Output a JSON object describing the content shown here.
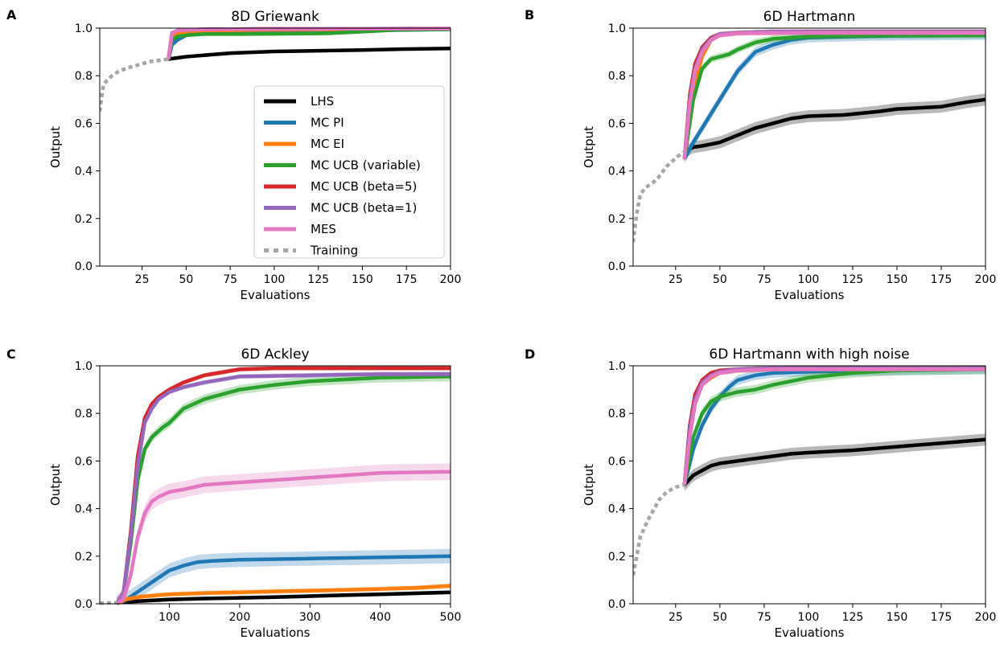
{
  "figure": {
    "panels": [
      "A",
      "B",
      "C",
      "D"
    ]
  },
  "chart_data": [
    {
      "panel": "A",
      "type": "line",
      "title": "8D Griewank",
      "xlabel": "Evaluations",
      "ylabel": "Output",
      "xlim": [
        1,
        200
      ],
      "ylim": [
        0,
        1
      ],
      "xticks": [
        25,
        50,
        75,
        100,
        125,
        150,
        175,
        200
      ],
      "yticks": [
        0.0,
        0.2,
        0.4,
        0.6,
        0.8,
        1.0
      ],
      "ytick_labels": [
        "0.0",
        "0.2",
        "0.4",
        "0.6",
        "0.8",
        "1.0"
      ],
      "legend": {
        "location": "center-right",
        "entries": [
          "LHS",
          "MC PI",
          "MC EI",
          "MC UCB (variable)",
          "MC UCB (beta=5)",
          "MC UCB (beta=1)",
          "MES",
          "Training"
        ]
      },
      "series": [
        {
          "name": "LHS",
          "x": [
            40,
            50,
            75,
            100,
            125,
            150,
            175,
            200
          ],
          "y": [
            0.87,
            0.88,
            0.895,
            0.902,
            0.905,
            0.908,
            0.912,
            0.915
          ],
          "band": 0
        },
        {
          "name": "MC PI",
          "x": [
            40,
            42,
            45,
            50,
            55,
            60,
            80,
            100,
            150,
            200
          ],
          "y": [
            0.87,
            0.93,
            0.95,
            0.97,
            0.975,
            0.978,
            0.98,
            0.985,
            0.99,
            0.995
          ],
          "band": 0.005
        },
        {
          "name": "MC EI",
          "x": [
            40,
            42,
            45,
            50,
            60,
            100,
            150,
            200
          ],
          "y": [
            0.87,
            0.97,
            0.98,
            0.985,
            0.99,
            0.993,
            0.995,
            0.997
          ],
          "band": 0
        },
        {
          "name": "MC UCB (variable)",
          "x": [
            40,
            42,
            45,
            50,
            60,
            80,
            100,
            130,
            150,
            170,
            200
          ],
          "y": [
            0.87,
            0.95,
            0.965,
            0.97,
            0.975,
            0.975,
            0.976,
            0.978,
            0.985,
            0.993,
            0.995
          ],
          "band": 0.004
        },
        {
          "name": "MC UCB (beta=5)",
          "x": [
            40,
            42,
            45,
            50,
            60,
            100,
            200
          ],
          "y": [
            0.87,
            0.98,
            0.99,
            0.993,
            0.995,
            0.997,
            0.998
          ],
          "band": 0
        },
        {
          "name": "MC UCB (beta=1)",
          "x": [
            40,
            42,
            45,
            50,
            60,
            100,
            200
          ],
          "y": [
            0.87,
            0.98,
            0.99,
            0.993,
            0.995,
            0.997,
            0.998
          ],
          "band": 0
        },
        {
          "name": "MES",
          "x": [
            40,
            42,
            45,
            50,
            60,
            100,
            200
          ],
          "y": [
            0.87,
            0.98,
            0.99,
            0.993,
            0.995,
            0.997,
            0.998
          ],
          "band": 0
        },
        {
          "name": "Training",
          "x": [
            1,
            3,
            5,
            8,
            12,
            16,
            20,
            25,
            30,
            35,
            40
          ],
          "y": [
            0.65,
            0.76,
            0.78,
            0.8,
            0.82,
            0.83,
            0.84,
            0.85,
            0.86,
            0.865,
            0.87
          ],
          "band": 0
        }
      ]
    },
    {
      "panel": "B",
      "type": "line",
      "title": "6D Hartmann",
      "xlabel": "Evaluations",
      "ylabel": "Output",
      "xlim": [
        1,
        200
      ],
      "ylim": [
        0,
        1
      ],
      "xticks": [
        25,
        50,
        75,
        100,
        125,
        150,
        175,
        200
      ],
      "yticks": [
        0.0,
        0.2,
        0.4,
        0.6,
        0.8,
        1.0
      ],
      "ytick_labels": [
        "0.0",
        "0.2",
        "0.4",
        "0.6",
        "0.8",
        "1.0"
      ],
      "series": [
        {
          "name": "LHS",
          "x": [
            30,
            35,
            40,
            50,
            60,
            70,
            80,
            90,
            100,
            120,
            140,
            150,
            175,
            190,
            200
          ],
          "y": [
            0.48,
            0.5,
            0.505,
            0.52,
            0.55,
            0.58,
            0.6,
            0.62,
            0.63,
            0.635,
            0.65,
            0.66,
            0.67,
            0.69,
            0.7
          ],
          "band": 0.025
        },
        {
          "name": "MC PI",
          "x": [
            30,
            35,
            40,
            50,
            60,
            70,
            80,
            90,
            100,
            125,
            150,
            200
          ],
          "y": [
            0.45,
            0.52,
            0.58,
            0.7,
            0.82,
            0.9,
            0.93,
            0.95,
            0.96,
            0.965,
            0.968,
            0.97
          ],
          "band": 0.02
        },
        {
          "name": "MC EI",
          "x": [
            30,
            35,
            40,
            45,
            50,
            60,
            80,
            100,
            200
          ],
          "y": [
            0.45,
            0.75,
            0.88,
            0.95,
            0.97,
            0.98,
            0.98,
            0.985,
            0.985
          ],
          "band": 0.01
        },
        {
          "name": "MC UCB (variable)",
          "x": [
            30,
            35,
            40,
            45,
            50,
            55,
            60,
            70,
            80,
            90,
            100,
            125,
            150,
            200
          ],
          "y": [
            0.45,
            0.7,
            0.83,
            0.87,
            0.88,
            0.89,
            0.91,
            0.94,
            0.955,
            0.96,
            0.965,
            0.968,
            0.97,
            0.97
          ],
          "band": 0.015
        },
        {
          "name": "MC UCB (beta=5)",
          "x": [
            30,
            33,
            36,
            40,
            45,
            50,
            60,
            80,
            100,
            200
          ],
          "y": [
            0.45,
            0.72,
            0.85,
            0.92,
            0.96,
            0.975,
            0.98,
            0.985,
            0.985,
            0.985
          ],
          "band": 0.01
        },
        {
          "name": "MC UCB (beta=1)",
          "x": [
            30,
            33,
            36,
            40,
            45,
            50,
            60,
            80,
            100,
            200
          ],
          "y": [
            0.45,
            0.7,
            0.83,
            0.91,
            0.955,
            0.975,
            0.98,
            0.985,
            0.985,
            0.985
          ],
          "band": 0.01
        },
        {
          "name": "MES",
          "x": [
            30,
            33,
            36,
            40,
            45,
            50,
            60,
            80,
            100,
            200
          ],
          "y": [
            0.45,
            0.68,
            0.82,
            0.9,
            0.95,
            0.97,
            0.978,
            0.98,
            0.98,
            0.98
          ],
          "band": 0.01
        },
        {
          "name": "Training",
          "x": [
            1,
            3,
            5,
            8,
            10,
            12,
            15,
            18,
            20,
            23,
            26,
            30
          ],
          "y": [
            0.1,
            0.22,
            0.3,
            0.33,
            0.34,
            0.35,
            0.37,
            0.4,
            0.42,
            0.44,
            0.46,
            0.48
          ],
          "band": 0
        }
      ]
    },
    {
      "panel": "C",
      "type": "line",
      "title": "6D Ackley",
      "xlabel": "Evaluations",
      "ylabel": "Output",
      "xlim": [
        1,
        500
      ],
      "ylim": [
        0,
        1
      ],
      "xticks": [
        100,
        200,
        300,
        400,
        500
      ],
      "yticks": [
        0.0,
        0.2,
        0.4,
        0.6,
        0.8,
        1.0
      ],
      "ytick_labels": [
        "0.0",
        "0.2",
        "0.4",
        "0.6",
        "0.8",
        "1.0"
      ],
      "series": [
        {
          "name": "LHS",
          "x": [
            25,
            50,
            100,
            150,
            200,
            250,
            300,
            350,
            400,
            450,
            500
          ],
          "y": [
            0.005,
            0.01,
            0.018,
            0.022,
            0.025,
            0.028,
            0.032,
            0.036,
            0.04,
            0.044,
            0.048
          ],
          "band": 0.008
        },
        {
          "name": "MC PI",
          "x": [
            25,
            40,
            60,
            80,
            100,
            120,
            140,
            160,
            200,
            300,
            400,
            500
          ],
          "y": [
            0.0,
            0.02,
            0.06,
            0.1,
            0.14,
            0.16,
            0.175,
            0.18,
            0.185,
            0.19,
            0.195,
            0.2
          ],
          "band": 0.03
        },
        {
          "name": "MC EI",
          "x": [
            25,
            40,
            60,
            80,
            100,
            150,
            200,
            250,
            300,
            350,
            400,
            450,
            500
          ],
          "y": [
            0.0,
            0.02,
            0.03,
            0.035,
            0.04,
            0.045,
            0.048,
            0.052,
            0.055,
            0.058,
            0.062,
            0.067,
            0.075
          ],
          "band": 0.01
        },
        {
          "name": "MC UCB (variable)",
          "x": [
            25,
            35,
            45,
            55,
            65,
            75,
            90,
            100,
            120,
            150,
            200,
            250,
            300,
            400,
            500
          ],
          "y": [
            0.0,
            0.05,
            0.25,
            0.52,
            0.65,
            0.7,
            0.74,
            0.76,
            0.82,
            0.86,
            0.9,
            0.92,
            0.935,
            0.95,
            0.955
          ],
          "band": 0.02
        },
        {
          "name": "MC UCB (beta=5)",
          "x": [
            25,
            35,
            45,
            55,
            65,
            75,
            85,
            100,
            120,
            150,
            200,
            250,
            300,
            500
          ],
          "y": [
            0.0,
            0.05,
            0.3,
            0.62,
            0.78,
            0.84,
            0.87,
            0.9,
            0.93,
            0.96,
            0.985,
            0.99,
            0.99,
            0.99
          ],
          "band": 0.01
        },
        {
          "name": "MC UCB (beta=1)",
          "x": [
            25,
            35,
            45,
            55,
            65,
            75,
            85,
            100,
            120,
            150,
            200,
            300,
            400,
            500
          ],
          "y": [
            0.0,
            0.05,
            0.28,
            0.58,
            0.76,
            0.82,
            0.86,
            0.89,
            0.91,
            0.93,
            0.955,
            0.96,
            0.965,
            0.965
          ],
          "band": 0.01
        },
        {
          "name": "MES",
          "x": [
            25,
            35,
            45,
            55,
            65,
            75,
            85,
            100,
            120,
            150,
            200,
            250,
            300,
            350,
            400,
            500
          ],
          "y": [
            0.0,
            0.02,
            0.12,
            0.28,
            0.38,
            0.43,
            0.45,
            0.47,
            0.48,
            0.5,
            0.51,
            0.52,
            0.53,
            0.54,
            0.55,
            0.555
          ],
          "band": 0.035
        },
        {
          "name": "Training",
          "x": [
            1,
            10,
            20,
            25
          ],
          "y": [
            0.002,
            0.003,
            0.004,
            0.005
          ],
          "band": 0
        }
      ]
    },
    {
      "panel": "D",
      "type": "line",
      "title": "6D Hartmann with high noise",
      "xlabel": "Evaluations",
      "ylabel": "Output",
      "xlim": [
        1,
        200
      ],
      "ylim": [
        0,
        1
      ],
      "xticks": [
        25,
        50,
        75,
        100,
        125,
        150,
        175,
        200
      ],
      "yticks": [
        0.0,
        0.2,
        0.4,
        0.6,
        0.8,
        1.0
      ],
      "ytick_labels": [
        "0.0",
        "0.2",
        "0.4",
        "0.6",
        "0.8",
        "1.0"
      ],
      "series": [
        {
          "name": "LHS",
          "x": [
            30,
            35,
            40,
            45,
            50,
            60,
            70,
            80,
            90,
            100,
            125,
            150,
            175,
            200
          ],
          "y": [
            0.5,
            0.54,
            0.56,
            0.58,
            0.59,
            0.6,
            0.61,
            0.62,
            0.63,
            0.635,
            0.645,
            0.66,
            0.675,
            0.69
          ],
          "band": 0.025
        },
        {
          "name": "MC PI",
          "x": [
            30,
            35,
            40,
            45,
            50,
            55,
            60,
            70,
            80,
            100,
            150,
            200
          ],
          "y": [
            0.5,
            0.65,
            0.75,
            0.82,
            0.87,
            0.91,
            0.94,
            0.96,
            0.97,
            0.975,
            0.98,
            0.985
          ],
          "band": 0.02
        },
        {
          "name": "MC EI",
          "x": [
            30,
            33,
            36,
            40,
            45,
            50,
            60,
            80,
            100,
            200
          ],
          "y": [
            0.5,
            0.72,
            0.85,
            0.92,
            0.95,
            0.97,
            0.98,
            0.985,
            0.99,
            0.99
          ],
          "band": 0.01
        },
        {
          "name": "MC UCB (variable)",
          "x": [
            30,
            35,
            40,
            45,
            50,
            55,
            60,
            70,
            80,
            100,
            125,
            150,
            200
          ],
          "y": [
            0.5,
            0.7,
            0.8,
            0.85,
            0.87,
            0.88,
            0.89,
            0.9,
            0.92,
            0.95,
            0.97,
            0.98,
            0.985
          ],
          "band": 0.02
        },
        {
          "name": "MC UCB (beta=5)",
          "x": [
            30,
            33,
            36,
            40,
            45,
            50,
            60,
            80,
            100,
            200
          ],
          "y": [
            0.5,
            0.75,
            0.88,
            0.94,
            0.97,
            0.98,
            0.985,
            0.99,
            0.99,
            0.99
          ],
          "band": 0.01
        },
        {
          "name": "MC UCB (beta=1)",
          "x": [
            30,
            33,
            36,
            40,
            45,
            50,
            60,
            80,
            100,
            200
          ],
          "y": [
            0.5,
            0.73,
            0.86,
            0.93,
            0.96,
            0.975,
            0.985,
            0.99,
            0.99,
            0.99
          ],
          "band": 0.01
        },
        {
          "name": "MES",
          "x": [
            30,
            33,
            36,
            40,
            45,
            50,
            60,
            80,
            100,
            200
          ],
          "y": [
            0.5,
            0.7,
            0.84,
            0.92,
            0.955,
            0.97,
            0.98,
            0.985,
            0.985,
            0.985
          ],
          "band": 0.01
        },
        {
          "name": "Training",
          "x": [
            1,
            3,
            5,
            8,
            10,
            13,
            16,
            20,
            25,
            30
          ],
          "y": [
            0.12,
            0.2,
            0.28,
            0.33,
            0.36,
            0.4,
            0.44,
            0.47,
            0.49,
            0.5
          ],
          "band": 0
        }
      ]
    }
  ]
}
